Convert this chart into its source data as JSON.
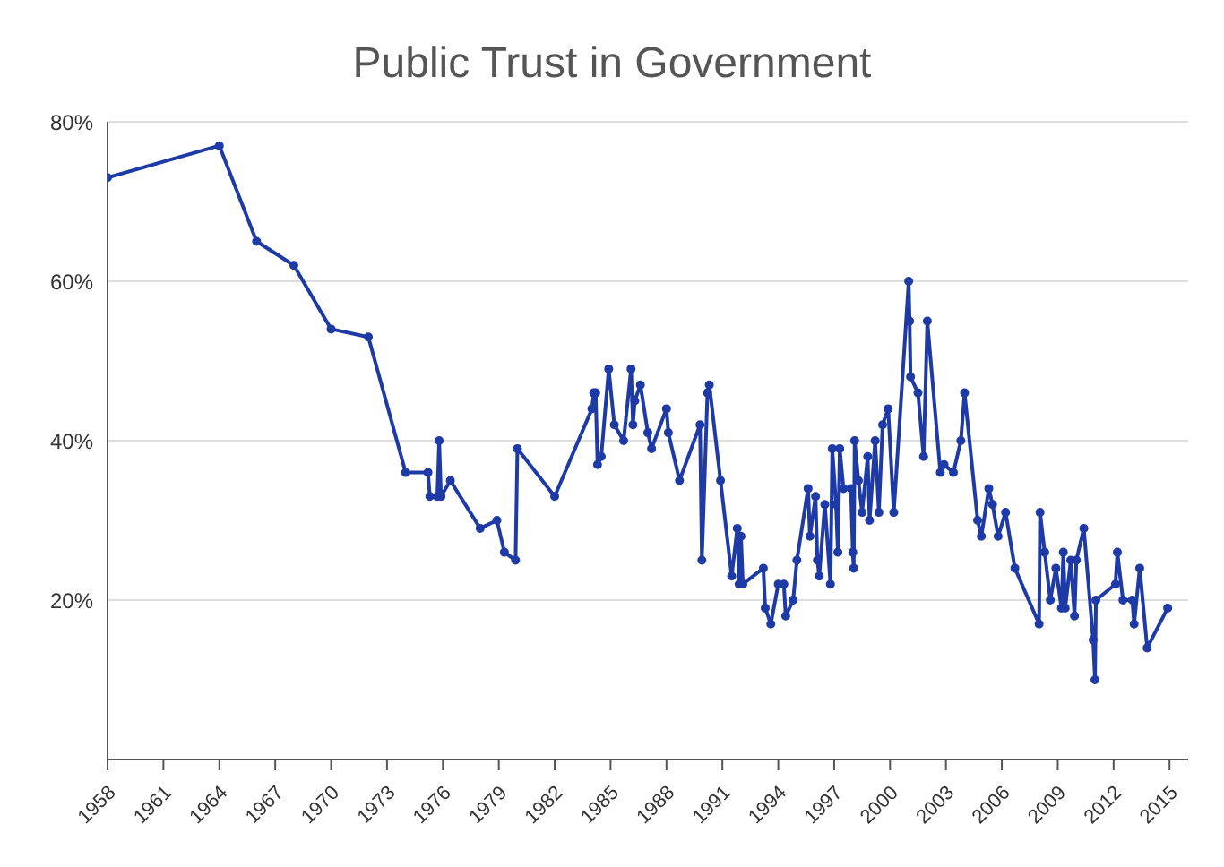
{
  "chart_data": {
    "type": "line",
    "title": "Public Trust in Government",
    "x": [
      1958,
      1964,
      1966,
      1968,
      1970,
      1972,
      1974,
      1975.2,
      1975.3,
      1975.7,
      1975.8,
      1975.9,
      1976.4,
      1978,
      1978.9,
      1979.3,
      1979.9,
      1980,
      1982,
      1984,
      1984.1,
      1984.2,
      1984.3,
      1984.5,
      1984.9,
      1985.2,
      1985.7,
      1986.1,
      1986.2,
      1986.3,
      1986.6,
      1987,
      1987.2,
      1988,
      1988.1,
      1988.7,
      1989.8,
      1989.9,
      1990.2,
      1990.3,
      1990.9,
      1991.5,
      1991.8,
      1991.9,
      1992,
      1992.1,
      1993.2,
      1993.3,
      1993.6,
      1994,
      1994.3,
      1994.4,
      1994.8,
      1995,
      1995.6,
      1995.7,
      1996,
      1996.1,
      1996.2,
      1996.5,
      1996.8,
      1996.9,
      1997.1,
      1997.2,
      1997.3,
      1997.5,
      1997.9,
      1998,
      1998.05,
      1998.1,
      1998.3,
      1998.5,
      1998.8,
      1998.9,
      1999.2,
      1999.4,
      1999.6,
      1999.9,
      2000.2,
      2001,
      2001.05,
      2001.1,
      2001.5,
      2001.8,
      2002,
      2002.7,
      2002.9,
      2003.4,
      2003.8,
      2004,
      2004.7,
      2004.9,
      2005.3,
      2005.5,
      2005.8,
      2006.2,
      2006.7,
      2008,
      2008.05,
      2008.3,
      2008.6,
      2008.9,
      2009.2,
      2009.3,
      2009.4,
      2009.7,
      2009.9,
      2010,
      2010.4,
      2010.9,
      2011,
      2011.05,
      2012.1,
      2012.2,
      2012.5,
      2013,
      2013.1,
      2013.4,
      2013.8,
      2014.9
    ],
    "series": [
      {
        "color": "#1d3aa6",
        "values": [
          73,
          77,
          65,
          62,
          54,
          53,
          36,
          36,
          33,
          33,
          40,
          33,
          35,
          29,
          30,
          26,
          25,
          39,
          33,
          44,
          46,
          46,
          37,
          38,
          49,
          42,
          40,
          49,
          42,
          45,
          47,
          41,
          39,
          44,
          41,
          35,
          42,
          25,
          46,
          47,
          35,
          23,
          29,
          22,
          28,
          22,
          24,
          19,
          17,
          22,
          22,
          18,
          20,
          25,
          34,
          28,
          33,
          25,
          23,
          32,
          22,
          39,
          32,
          26,
          39,
          34,
          34,
          26,
          24,
          40,
          35,
          31,
          38,
          30,
          40,
          31,
          42,
          44,
          31,
          60,
          55,
          48,
          46,
          38,
          55,
          36,
          37,
          36,
          40,
          46,
          30,
          28,
          34,
          32,
          28,
          31,
          24,
          17,
          31,
          26,
          20,
          24,
          19,
          26,
          19,
          25,
          18,
          25,
          29,
          15,
          10,
          20,
          22,
          26,
          20,
          20,
          17,
          24,
          14,
          19
        ]
      }
    ],
    "xlim": [
      1958,
      2016
    ],
    "xticks": [
      1958,
      1961,
      1964,
      1967,
      1970,
      1973,
      1976,
      1979,
      1982,
      1985,
      1988,
      1991,
      1994,
      1997,
      2000,
      2003,
      2006,
      2009,
      2012,
      2015
    ],
    "ylim": [
      0,
      80
    ],
    "yticks": [
      {
        "value": 20,
        "label": "20%"
      },
      {
        "value": 40,
        "label": "40%"
      },
      {
        "value": 60,
        "label": "60%"
      },
      {
        "value": 80,
        "label": "80%"
      }
    ],
    "grid": "y",
    "marker": "circle",
    "line_style": "solid"
  }
}
